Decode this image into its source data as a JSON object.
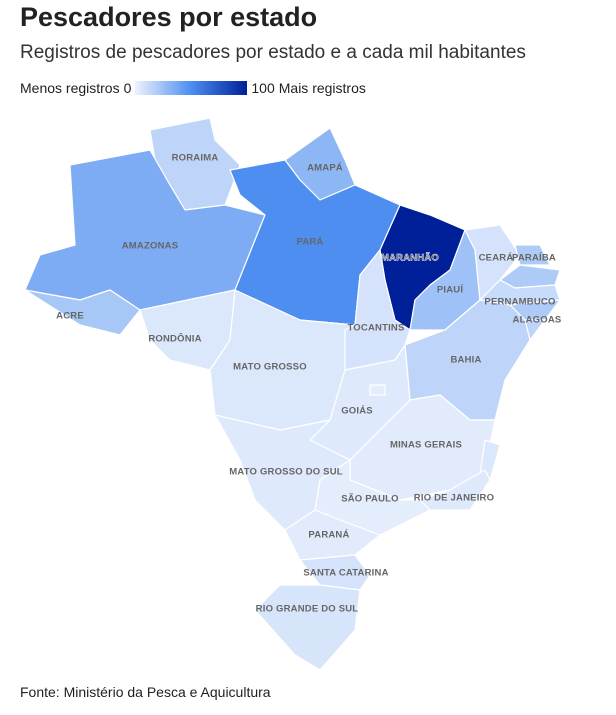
{
  "chart_data": {
    "type": "choropleth",
    "title": "Pescadores por estado",
    "subtitle": "Registros de pescadores por estado e a cada mil habitantes",
    "legend": {
      "min_label": "Menos registros",
      "min": 0,
      "max": 100,
      "max_label": "Mais registros",
      "colors": [
        "#eef3fd",
        "#4d8ef0",
        "#00209a"
      ]
    },
    "regions": [
      {
        "name": "RORAIMA",
        "value": 15
      },
      {
        "name": "AMAPÁ",
        "value": 30
      },
      {
        "name": "AMAZONAS",
        "value": 35
      },
      {
        "name": "ACRE",
        "value": 22
      },
      {
        "name": "PARÁ",
        "value": 50
      },
      {
        "name": "MARANHÃO",
        "value": 100
      },
      {
        "name": "PIAUÍ",
        "value": 25
      },
      {
        "name": "CEARÁ",
        "value": 8
      },
      {
        "name": null,
        "value": 20
      },
      {
        "name": "PARAÍBA",
        "value": 20
      },
      {
        "name": "PERNAMBUCO",
        "value": 12
      },
      {
        "name": "ALAGOAS",
        "value": 20
      },
      {
        "name": null,
        "value": 15
      },
      {
        "name": "BAHIA",
        "value": 15
      },
      {
        "name": "TOCANTINS",
        "value": 8
      },
      {
        "name": "RONDÔNIA",
        "value": 6
      },
      {
        "name": "MATO GROSSO",
        "value": 6
      },
      {
        "name": "GOIÁS",
        "value": 5
      },
      {
        "name": null,
        "value": 3
      },
      {
        "name": "MINAS GERAIS",
        "value": 4
      },
      {
        "name": null,
        "value": 6
      },
      {
        "name": "RIO DE JANEIRO",
        "value": 5
      },
      {
        "name": "SÃO PAULO",
        "value": 3
      },
      {
        "name": "MATO GROSSO DO SUL",
        "value": 5
      },
      {
        "name": "PARANÁ",
        "value": 4
      },
      {
        "name": "SANTA CATARINA",
        "value": 8
      },
      {
        "name": "RIO GRANDE DO SUL",
        "value": 7
      }
    ],
    "source": "Fonte: Ministério da Pesca e Aquicultura"
  }
}
